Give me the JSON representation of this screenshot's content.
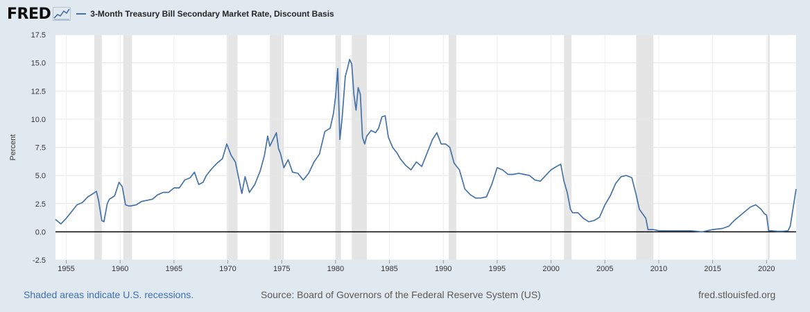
{
  "brand": {
    "logo_text": "FRED",
    "icon": "fred-trend-icon"
  },
  "chart_data": {
    "type": "line",
    "title": "3-Month Treasury Bill Secondary Market Rate, Discount Basis",
    "ylabel": "Percent",
    "xlabel": "",
    "ylim": [
      -2.5,
      17.5
    ],
    "xlim": [
      1954.0,
      2022.75
    ],
    "y_ticks": [
      -2.5,
      0.0,
      2.5,
      5.0,
      7.5,
      10.0,
      12.5,
      15.0,
      17.5
    ],
    "y_tick_labels": [
      "-2.5",
      "0.0",
      "2.5",
      "5.0",
      "7.5",
      "10.0",
      "12.5",
      "15.0",
      "17.5"
    ],
    "x_ticks": [
      1955,
      1960,
      1965,
      1970,
      1975,
      1980,
      1985,
      1990,
      1995,
      2000,
      2005,
      2010,
      2015,
      2020
    ],
    "x_tick_labels": [
      "1955",
      "1960",
      "1965",
      "1970",
      "1975",
      "1980",
      "1985",
      "1990",
      "1995",
      "2000",
      "2005",
      "2010",
      "2015",
      "2020"
    ],
    "grid": true,
    "recessions": [
      [
        1957.6,
        1958.3
      ],
      [
        1960.3,
        1961.1
      ],
      [
        1969.9,
        1970.9
      ],
      [
        1973.9,
        1975.2
      ],
      [
        1980.0,
        1980.5
      ],
      [
        1981.5,
        1982.9
      ],
      [
        1990.5,
        1991.2
      ],
      [
        2001.2,
        2001.9
      ],
      [
        2007.9,
        2009.5
      ],
      [
        2020.1,
        2020.3
      ]
    ],
    "series": [
      {
        "name": "3-Month Treasury Bill Secondary Market Rate, Discount Basis",
        "color": "#4572a7",
        "x": [
          1954.0,
          1954.5,
          1955.0,
          1955.5,
          1956.0,
          1956.5,
          1957.0,
          1957.5,
          1957.8,
          1958.0,
          1958.3,
          1958.5,
          1958.8,
          1959.0,
          1959.5,
          1959.9,
          1960.2,
          1960.5,
          1960.8,
          1961.0,
          1961.5,
          1962.0,
          1962.5,
          1963.0,
          1963.5,
          1964.0,
          1964.5,
          1965.0,
          1965.5,
          1966.0,
          1966.5,
          1966.9,
          1967.3,
          1967.7,
          1968.0,
          1968.5,
          1969.0,
          1969.5,
          1969.9,
          1970.3,
          1970.7,
          1971.0,
          1971.3,
          1971.6,
          1972.0,
          1972.5,
          1973.0,
          1973.4,
          1973.7,
          1973.9,
          1974.1,
          1974.5,
          1974.7,
          1974.9,
          1975.2,
          1975.6,
          1976.0,
          1976.5,
          1977.0,
          1977.5,
          1978.0,
          1978.5,
          1979.0,
          1979.5,
          1979.8,
          1980.0,
          1980.2,
          1980.4,
          1980.6,
          1980.9,
          1981.1,
          1981.3,
          1981.5,
          1981.7,
          1981.9,
          1982.1,
          1982.3,
          1982.5,
          1982.7,
          1982.9,
          1983.3,
          1983.7,
          1984.0,
          1984.3,
          1984.6,
          1984.9,
          1985.3,
          1985.7,
          1986.0,
          1986.5,
          1987.0,
          1987.5,
          1988.0,
          1988.5,
          1989.0,
          1989.4,
          1989.8,
          1990.2,
          1990.6,
          1991.0,
          1991.5,
          1992.0,
          1992.5,
          1993.0,
          1993.5,
          1994.0,
          1994.5,
          1995.0,
          1995.5,
          1996.0,
          1996.5,
          1997.0,
          1997.5,
          1998.0,
          1998.5,
          1999.0,
          1999.5,
          2000.0,
          2000.5,
          2000.9,
          2001.2,
          2001.5,
          2001.8,
          2002.0,
          2002.5,
          2003.0,
          2003.5,
          2004.0,
          2004.5,
          2005.0,
          2005.5,
          2006.0,
          2006.5,
          2007.0,
          2007.5,
          2007.9,
          2008.2,
          2008.5,
          2008.8,
          2009.0,
          2009.5,
          2010.0,
          2011.0,
          2012.0,
          2013.0,
          2014.0,
          2015.0,
          2015.9,
          2016.5,
          2017.0,
          2017.5,
          2018.0,
          2018.5,
          2019.0,
          2019.5,
          2019.8,
          2020.0,
          2020.2,
          2020.5,
          2021.0,
          2021.5,
          2022.0,
          2022.2,
          2022.5,
          2022.75
        ],
        "values": [
          1.1,
          0.7,
          1.2,
          1.8,
          2.4,
          2.6,
          3.1,
          3.4,
          3.6,
          2.8,
          1.0,
          0.9,
          2.5,
          2.9,
          3.2,
          4.4,
          4.0,
          2.4,
          2.3,
          2.3,
          2.4,
          2.7,
          2.8,
          2.9,
          3.3,
          3.5,
          3.5,
          3.9,
          3.9,
          4.6,
          4.8,
          5.3,
          4.2,
          4.4,
          5.0,
          5.6,
          6.1,
          6.5,
          7.8,
          6.8,
          6.2,
          4.8,
          3.4,
          4.9,
          3.5,
          4.2,
          5.4,
          6.8,
          8.5,
          7.6,
          8.0,
          8.8,
          7.4,
          6.9,
          5.7,
          6.4,
          5.3,
          5.2,
          4.6,
          5.2,
          6.2,
          6.9,
          8.9,
          9.2,
          10.5,
          12.0,
          14.5,
          8.2,
          10.0,
          13.8,
          14.5,
          15.3,
          14.9,
          12.2,
          10.8,
          12.8,
          12.2,
          8.4,
          7.8,
          8.5,
          9.0,
          8.8,
          9.2,
          10.2,
          10.3,
          8.4,
          7.5,
          7.0,
          6.5,
          5.9,
          5.5,
          6.2,
          5.8,
          7.0,
          8.2,
          8.8,
          7.8,
          7.8,
          7.5,
          6.1,
          5.5,
          3.8,
          3.3,
          3.0,
          3.0,
          3.1,
          4.2,
          5.7,
          5.5,
          5.1,
          5.1,
          5.2,
          5.1,
          5.0,
          4.6,
          4.5,
          5.0,
          5.5,
          5.8,
          6.0,
          4.5,
          3.5,
          2.0,
          1.7,
          1.7,
          1.2,
          0.9,
          1.0,
          1.3,
          2.4,
          3.2,
          4.3,
          4.9,
          5.0,
          4.8,
          3.3,
          2.0,
          1.6,
          1.2,
          0.2,
          0.2,
          0.1,
          0.1,
          0.1,
          0.1,
          0.0,
          0.2,
          0.3,
          0.5,
          1.0,
          1.4,
          1.8,
          2.2,
          2.4,
          2.0,
          1.6,
          1.5,
          0.1,
          0.1,
          0.05,
          0.05,
          0.1,
          0.5,
          2.3,
          3.8
        ]
      }
    ]
  },
  "footer": {
    "recession_note": "Shaded areas indicate U.S. recessions.",
    "source": "Source: Board of Governors of the Federal Reserve System (US)",
    "site": "fred.stlouisfed.org"
  }
}
